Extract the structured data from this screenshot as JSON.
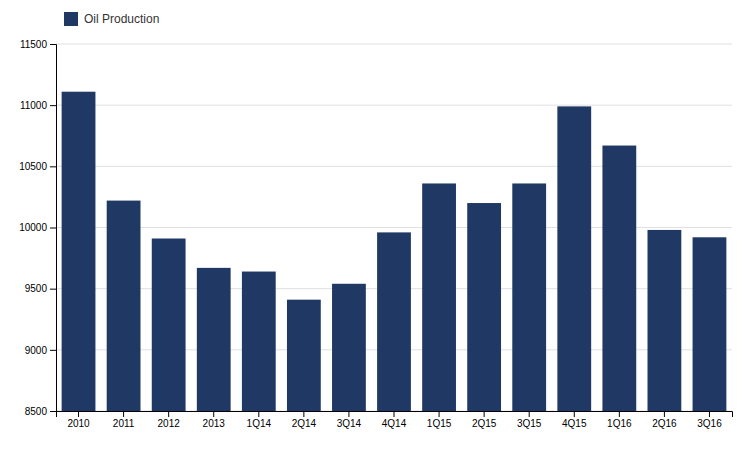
{
  "chart_data": {
    "type": "bar",
    "categories": [
      "2010",
      "2011",
      "2012",
      "2013",
      "1Q14",
      "2Q14",
      "3Q14",
      "4Q14",
      "1Q15",
      "2Q15",
      "3Q15",
      "4Q15",
      "1Q16",
      "2Q16",
      "3Q16"
    ],
    "series": [
      {
        "name": "Oil Production",
        "color": "#1F3864",
        "values": [
          11110,
          10220,
          9910,
          9670,
          9640,
          9410,
          9540,
          9960,
          10360,
          10200,
          10360,
          10990,
          10670,
          9980,
          9920
        ]
      }
    ],
    "ylim": [
      8500,
      11500
    ],
    "yticks": [
      8500,
      9000,
      9500,
      10000,
      10500,
      11000,
      11500
    ],
    "grid": true,
    "legend": "upper left"
  }
}
